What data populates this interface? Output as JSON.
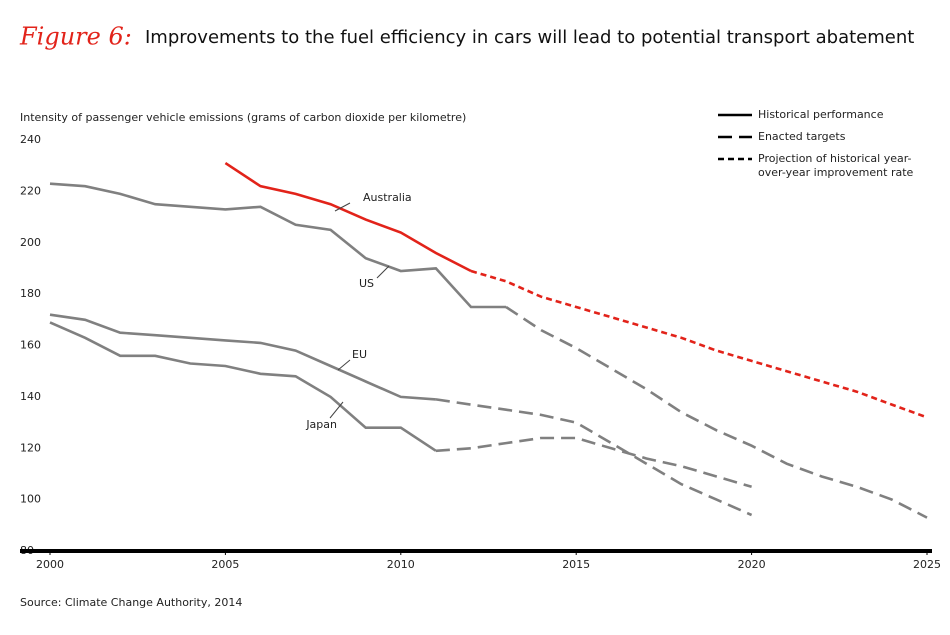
{
  "title_prefix": "Figure 6:",
  "chart_data": {
    "type": "line",
    "title": "Improvements to the fuel efficiency in cars will lead to potential transport abatement",
    "y_label": "Intensity of passenger vehicle emissions (grams of carbon dioxide per kilometre)",
    "source": "Source: Climate Change Authority, 2014",
    "x": [
      2000,
      2001,
      2002,
      2003,
      2004,
      2005,
      2006,
      2007,
      2008,
      2009,
      2010,
      2011,
      2012,
      2013,
      2014,
      2015,
      2016,
      2017,
      2018,
      2019,
      2020,
      2021,
      2022,
      2023,
      2024,
      2025
    ],
    "xlim": [
      2000,
      2025
    ],
    "xticks": [
      2000,
      2005,
      2010,
      2015,
      2020,
      2025
    ],
    "ylim": [
      80,
      240
    ],
    "yticks": [
      80,
      100,
      120,
      140,
      160,
      180,
      200,
      220,
      240
    ],
    "grid": false,
    "legend": [
      {
        "label": "Historical performance",
        "style": "solid"
      },
      {
        "label": "Enacted targets",
        "style": "long-dash"
      },
      {
        "label": "Projection of historical year-over-year improvement rate",
        "style": "short-dash"
      }
    ],
    "series": [
      {
        "name": "Australia",
        "color": "#e2231a",
        "target_style": "short-dash",
        "values": [
          null,
          null,
          null,
          null,
          null,
          231,
          222,
          219,
          215,
          209,
          204,
          196,
          189,
          null,
          null,
          null,
          null,
          null,
          null,
          null,
          null,
          null,
          null,
          null,
          null,
          null
        ],
        "target_values": [
          null,
          null,
          null,
          null,
          null,
          null,
          null,
          null,
          null,
          null,
          null,
          null,
          189,
          185,
          179,
          175,
          171,
          167,
          163,
          158,
          154,
          150,
          146,
          142,
          137,
          132
        ]
      },
      {
        "name": "US",
        "color": "#808080",
        "target_style": "long-dash",
        "values": [
          223,
          222,
          219,
          215,
          214,
          213,
          214,
          207,
          205,
          194,
          189,
          190,
          175,
          175,
          null,
          null,
          null,
          null,
          null,
          null,
          null,
          null,
          null,
          null,
          null,
          null
        ],
        "target_values": [
          null,
          null,
          null,
          null,
          null,
          null,
          null,
          null,
          null,
          null,
          null,
          null,
          null,
          175,
          166,
          159,
          151,
          143,
          134,
          127,
          121,
          114,
          109,
          105,
          100,
          93
        ]
      },
      {
        "name": "EU",
        "color": "#808080",
        "target_style": "long-dash",
        "values": [
          172,
          170,
          165,
          164,
          163,
          162,
          161,
          158,
          152,
          146,
          140,
          139,
          null,
          null,
          null,
          null,
          null,
          null,
          null,
          null,
          null,
          null,
          null,
          null,
          null,
          null
        ],
        "target_values": [
          null,
          null,
          null,
          null,
          null,
          null,
          null,
          null,
          null,
          null,
          null,
          139,
          137,
          135,
          133,
          130,
          122,
          114,
          106,
          100,
          94,
          null,
          null,
          null,
          null,
          null
        ]
      },
      {
        "name": "Japan",
        "color": "#808080",
        "target_style": "long-dash",
        "values": [
          169,
          163,
          156,
          156,
          153,
          152,
          149,
          148,
          140,
          128,
          128,
          119,
          null,
          null,
          null,
          null,
          null,
          null,
          null,
          null,
          null,
          null,
          null,
          null,
          null,
          null
        ],
        "target_values": [
          null,
          null,
          null,
          null,
          null,
          null,
          null,
          null,
          null,
          null,
          null,
          119,
          120,
          122,
          124,
          124,
          120,
          116,
          113,
          109,
          105,
          null,
          null,
          null,
          null,
          null
        ]
      }
    ]
  }
}
